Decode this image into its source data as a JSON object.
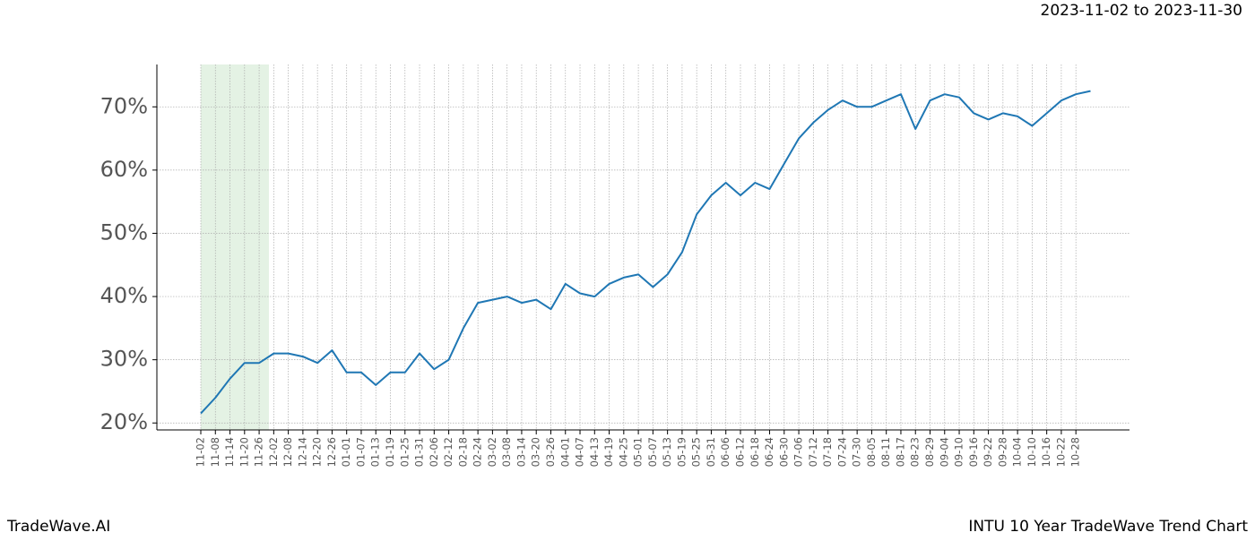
{
  "chart_data": {
    "type": "line",
    "range_text": "2023-11-02 to 2023-11-30",
    "brand": "TradeWave.AI",
    "title": "INTU 10 Year TradeWave Trend Chart",
    "categories": [
      "11-02",
      "11-08",
      "11-14",
      "11-20",
      "11-26",
      "12-02",
      "12-08",
      "12-14",
      "12-20",
      "12-26",
      "01-01",
      "01-07",
      "01-13",
      "01-19",
      "01-25",
      "01-31",
      "02-06",
      "02-12",
      "02-18",
      "02-24",
      "03-02",
      "03-08",
      "03-14",
      "03-20",
      "03-26",
      "04-01",
      "04-07",
      "04-13",
      "04-19",
      "04-25",
      "05-01",
      "05-07",
      "05-13",
      "05-19",
      "05-25",
      "05-31",
      "06-06",
      "06-12",
      "06-18",
      "06-24",
      "06-30",
      "07-06",
      "07-12",
      "07-18",
      "07-24",
      "07-30",
      "08-05",
      "08-11",
      "08-17",
      "08-23",
      "08-29",
      "09-04",
      "09-10",
      "09-16",
      "09-22",
      "09-28",
      "10-04",
      "10-10",
      "10-16",
      "10-22",
      "10-28",
      null
    ],
    "series": [
      {
        "name": "INTU",
        "color": "#1f77b4",
        "values": [
          21.5,
          24,
          27,
          29.5,
          29.5,
          31,
          31,
          30.5,
          29.5,
          31.5,
          28,
          28,
          26,
          28,
          28,
          31,
          28.5,
          30,
          35,
          39,
          39.5,
          40,
          39,
          39.5,
          38,
          42,
          40.5,
          40,
          42,
          43,
          43.5,
          41.5,
          43.5,
          47,
          53,
          56,
          58,
          56,
          58,
          57,
          61,
          65,
          67.5,
          69.5,
          71,
          70,
          70,
          71,
          72,
          66.5,
          71,
          72,
          71.5,
          69,
          68,
          69,
          68.5,
          67,
          69,
          71,
          72,
          72.5
        ]
      }
    ],
    "ylim": [
      18.9,
      76.7
    ],
    "yticks": [
      {
        "value": 20,
        "label": "20%"
      },
      {
        "value": 30,
        "label": "30%"
      },
      {
        "value": 40,
        "label": "40%"
      },
      {
        "value": 50,
        "label": "50%"
      },
      {
        "value": 60,
        "label": "60%"
      },
      {
        "value": 70,
        "label": "70%"
      }
    ],
    "grid": true
  }
}
